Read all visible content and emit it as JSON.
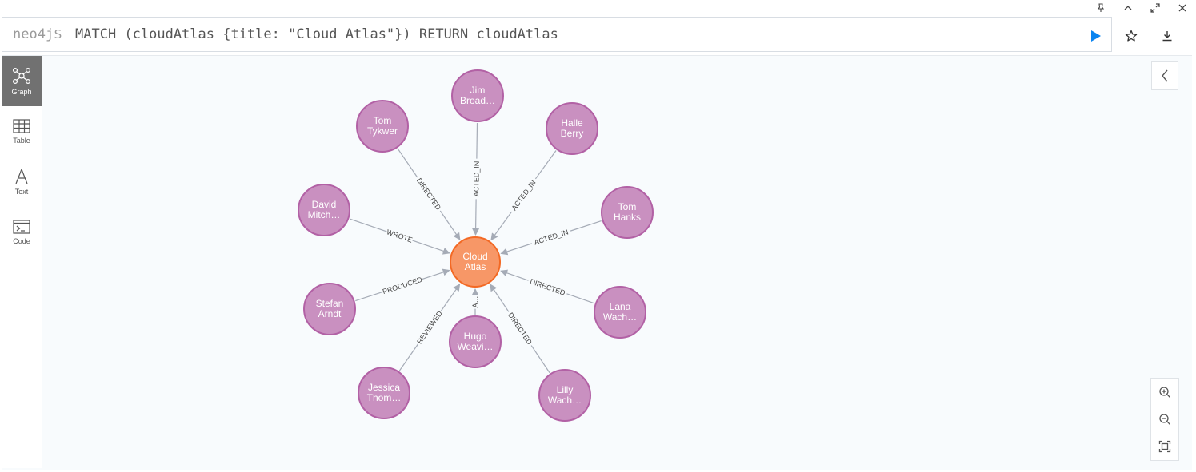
{
  "editor": {
    "prompt": "neo4j$",
    "query": "MATCH (cloudAtlas {title: \"Cloud Atlas\"}) RETURN cloudAtlas"
  },
  "window_icons": [
    "pin-icon",
    "chevron-up-icon",
    "expand-icon",
    "close-icon"
  ],
  "side_tabs": [
    {
      "label": "Graph",
      "icon": "graph-icon",
      "active": true
    },
    {
      "label": "Table",
      "icon": "table-icon",
      "active": false
    },
    {
      "label": "Text",
      "icon": "text-icon",
      "active": false
    },
    {
      "label": "Code",
      "icon": "code-icon",
      "active": false
    }
  ],
  "colors": {
    "person_node": "#c990c0",
    "person_stroke": "#b261a5",
    "movie_node": "#f79767",
    "movie_stroke": "#f36924",
    "run_button": "#0a84f0",
    "edge": "#a5abb6"
  },
  "graph": {
    "center": {
      "id": "cloud_atlas",
      "lines": [
        "Cloud",
        "Atlas"
      ]
    },
    "nodes": [
      {
        "id": "jim",
        "lines": [
          "Jim",
          "Broad…"
        ],
        "rel": "ACTED_IN"
      },
      {
        "id": "halle",
        "lines": [
          "Halle",
          "Berry"
        ],
        "rel": "ACTED_IN"
      },
      {
        "id": "tomh",
        "lines": [
          "Tom",
          "Hanks"
        ],
        "rel": "ACTED_IN"
      },
      {
        "id": "lana",
        "lines": [
          "Lana",
          "Wach…"
        ],
        "rel": "DIRECTED"
      },
      {
        "id": "lilly",
        "lines": [
          "Lilly",
          "Wach…"
        ],
        "rel": "DIRECTED"
      },
      {
        "id": "hugo",
        "lines": [
          "Hugo",
          "Weavi…"
        ],
        "rel": "A…"
      },
      {
        "id": "jessica",
        "lines": [
          "Jessica",
          "Thom…"
        ],
        "rel": "REVIEWED"
      },
      {
        "id": "stefan",
        "lines": [
          "Stefan",
          "Arndt"
        ],
        "rel": "PRODUCED"
      },
      {
        "id": "david",
        "lines": [
          "David",
          "Mitch…"
        ],
        "rel": "WROTE"
      },
      {
        "id": "tomt",
        "lines": [
          "Tom",
          "Tykwer"
        ],
        "rel": "DIRECTED"
      }
    ]
  }
}
